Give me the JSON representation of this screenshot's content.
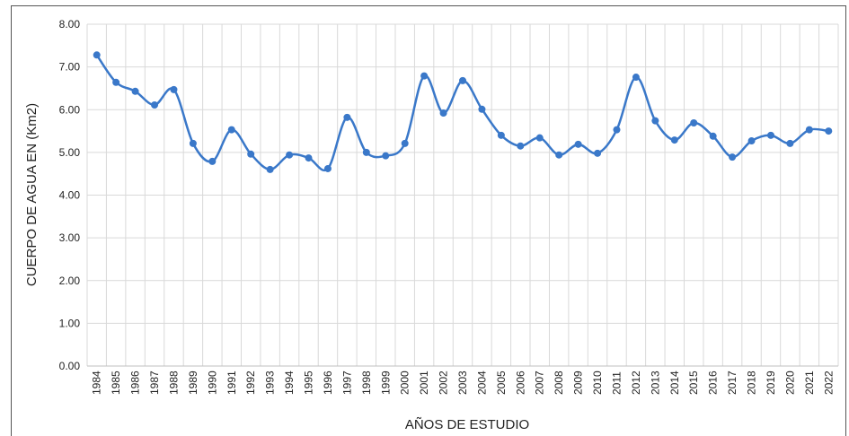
{
  "chart_data": {
    "type": "line",
    "x_label": "AÑOS DE ESTUDIO",
    "y_label": "CUERPO DE AGUA EN (Km2)",
    "categories": [
      "1984",
      "1985",
      "1986",
      "1987",
      "1988",
      "1989",
      "1990",
      "1991",
      "1992",
      "1993",
      "1994",
      "1995",
      "1996",
      "1997",
      "1998",
      "1999",
      "2000",
      "2001",
      "2002",
      "2003",
      "2004",
      "2005",
      "2006",
      "2007",
      "2008",
      "2009",
      "2010",
      "2011",
      "2012",
      "2013",
      "2014",
      "2015",
      "2016",
      "2017",
      "2018",
      "2019",
      "2020",
      "2021",
      "2022"
    ],
    "series": [
      {
        "name": "Cuerpo de agua",
        "color": "#3a78c9",
        "values": [
          7.28,
          6.64,
          6.43,
          6.11,
          6.47,
          5.21,
          4.79,
          5.53,
          4.96,
          4.6,
          4.94,
          4.87,
          4.62,
          5.82,
          5.0,
          4.92,
          5.21,
          6.79,
          5.92,
          6.68,
          6.01,
          5.4,
          5.15,
          5.34,
          4.94,
          5.19,
          4.98,
          5.53,
          6.76,
          5.74,
          5.29,
          5.69,
          5.38,
          4.89,
          5.27,
          5.4,
          5.21,
          5.53,
          5.5
        ]
      }
    ],
    "ylim": [
      0,
      8
    ],
    "yticks": [
      {
        "value": 0,
        "label": "0.00"
      },
      {
        "value": 1,
        "label": "1.00"
      },
      {
        "value": 2,
        "label": "2.00"
      },
      {
        "value": 3,
        "label": "3.00"
      },
      {
        "value": 4,
        "label": "4.00"
      },
      {
        "value": 5,
        "label": "5.00"
      },
      {
        "value": 6,
        "label": "6.00"
      },
      {
        "value": 7,
        "label": "7.00"
      },
      {
        "value": 8,
        "label": "8.00"
      }
    ],
    "grid": true,
    "smooth": true
  }
}
